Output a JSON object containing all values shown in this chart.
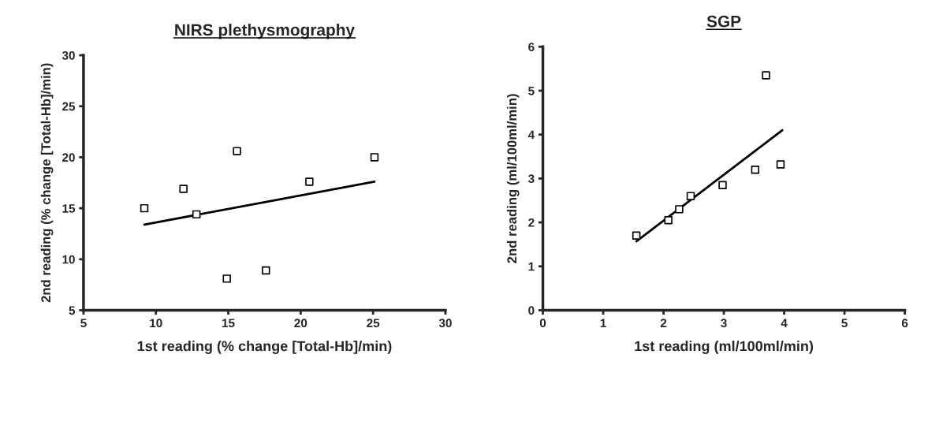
{
  "chart_data": [
    {
      "type": "scatter",
      "title": "NIRS plethysmography",
      "xlabel": "1st reading (% change [Total-Hb]/min)",
      "ylabel": "2nd reading (% change [Total-Hb]/min)",
      "xlim": [
        5,
        30
      ],
      "ylim": [
        5,
        30
      ],
      "xticks": [
        5,
        10,
        15,
        20,
        25,
        30
      ],
      "yticks": [
        5,
        10,
        15,
        20,
        25,
        30
      ],
      "grid": false,
      "legend": false,
      "series": [
        {
          "marker": "square",
          "color": "#000000",
          "x": [
            9.2,
            11.9,
            12.8,
            14.9,
            15.6,
            17.6,
            20.6,
            25.1
          ],
          "values": [
            15.0,
            16.9,
            14.4,
            8.1,
            20.6,
            8.9,
            17.6,
            20.0
          ]
        },
        {
          "type": "line",
          "color": "#000000",
          "line_style": "solid",
          "x": [
            9.2,
            25.1
          ],
          "values": [
            13.4,
            17.6
          ]
        }
      ]
    },
    {
      "type": "scatter",
      "title": "SGP",
      "xlabel": "1st reading (ml/100ml/min)",
      "ylabel": "2nd reading (ml/100ml/min)",
      "xlim": [
        0,
        6
      ],
      "ylim": [
        0,
        6
      ],
      "xticks": [
        0,
        1,
        2,
        3,
        4,
        5,
        6
      ],
      "yticks": [
        0,
        1,
        2,
        3,
        4,
        5,
        6
      ],
      "grid": false,
      "legend": false,
      "series": [
        {
          "marker": "square",
          "color": "#000000",
          "x": [
            1.55,
            2.08,
            2.26,
            2.45,
            2.98,
            3.52,
            3.7,
            3.94
          ],
          "values": [
            1.7,
            2.05,
            2.3,
            2.6,
            2.85,
            3.2,
            5.35,
            3.32
          ]
        },
        {
          "type": "line",
          "color": "#000000",
          "line_style": "solid",
          "x": [
            1.55,
            3.97
          ],
          "values": [
            1.57,
            4.1
          ]
        }
      ]
    }
  ]
}
